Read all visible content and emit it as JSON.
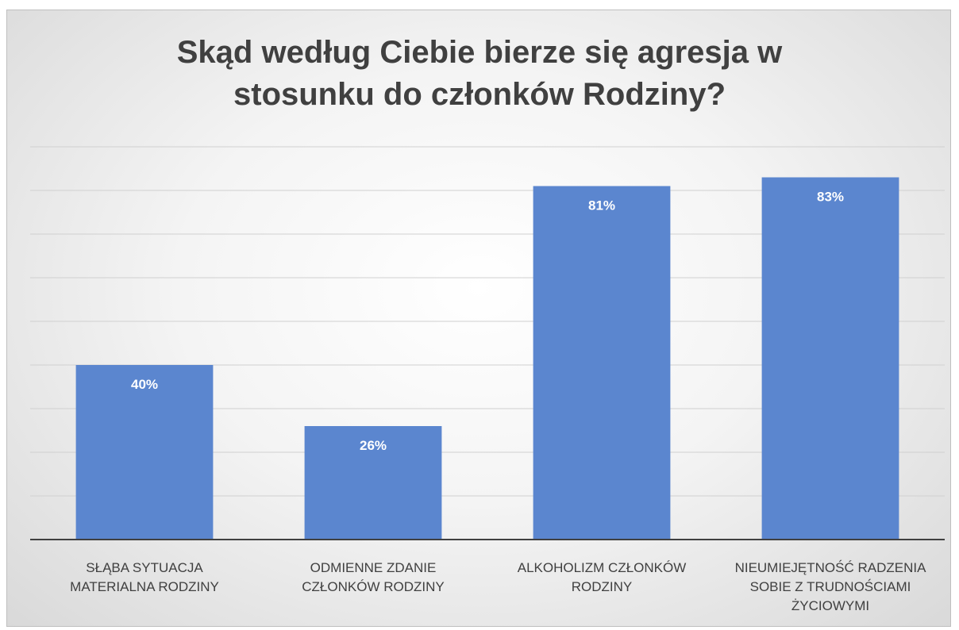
{
  "chart_data": {
    "type": "bar",
    "title": "Skąd według Ciebie bierze się agresja w stosunku do członków Rodziny?",
    "categories": [
      "SŁĄBA SYTUACJA MATERIALNA RODZINY",
      "ODMIENNE ZDANIE CZŁONKÓW RODZINY",
      "ALKOHOLIZM CZŁONKÓW RODZINY",
      "NIEUMIEJĘTNOŚĆ RADZENIA SOBIE Z TRUDNOŚCIAMI ŻYCIOWYMI"
    ],
    "values": [
      40,
      26,
      81,
      83
    ],
    "value_labels": [
      "40%",
      "26%",
      "81%",
      "83%"
    ],
    "color": "#5b86cf",
    "ylim": [
      0,
      90
    ],
    "yticks": [
      0,
      10,
      20,
      30,
      40,
      50,
      60,
      70,
      80,
      90
    ],
    "grid": true
  }
}
